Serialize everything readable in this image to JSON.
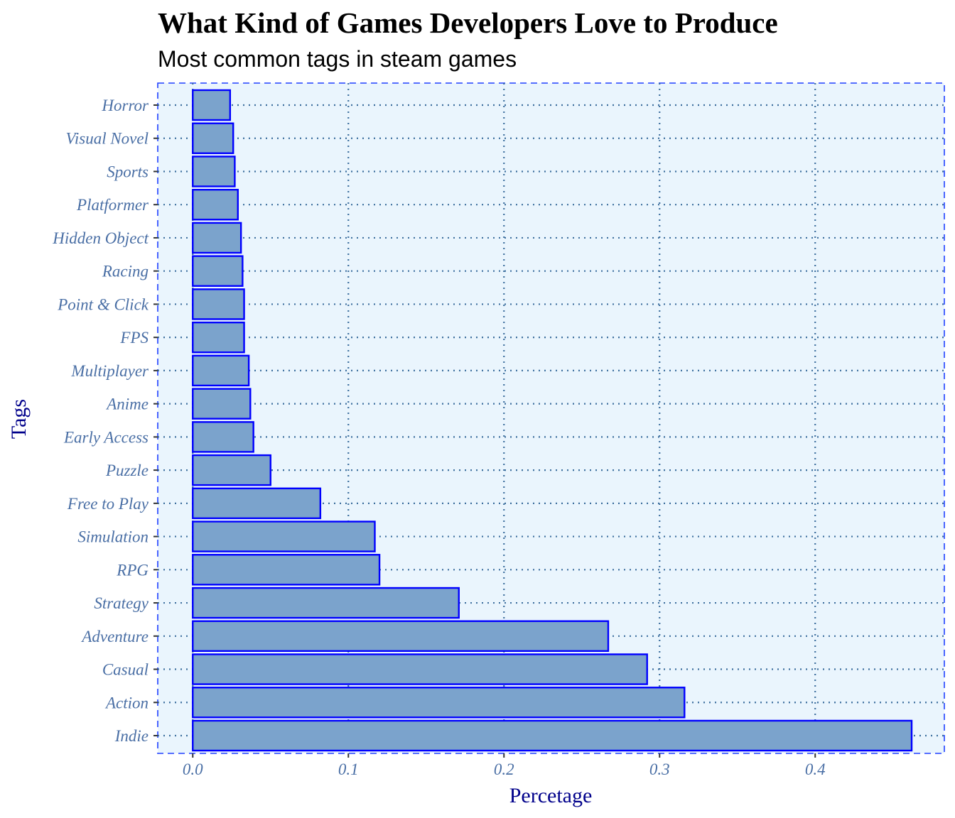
{
  "chart_data": {
    "type": "bar",
    "orientation": "horizontal",
    "title": "What Kind of Games Developers Love to Produce",
    "subtitle": "Most common tags in steam games",
    "xlabel": "Percetage",
    "ylabel": "Tags",
    "xlim": [
      -0.0225,
      0.483
    ],
    "x_ticks": [
      "0.0",
      "0.1",
      "0.2",
      "0.3",
      "0.4"
    ],
    "x_tick_values": [
      0.0,
      0.1,
      0.2,
      0.3,
      0.4
    ],
    "categories": [
      "Indie",
      "Action",
      "Casual",
      "Adventure",
      "Strategy",
      "RPG",
      "Simulation",
      "Free to Play",
      "Puzzle",
      "Early Access",
      "Anime",
      "Multiplayer",
      "FPS",
      "Point & Click",
      "Racing",
      "Hidden Object",
      "Platformer",
      "Sports",
      "Visual Novel",
      "Horror"
    ],
    "values": [
      0.462,
      0.316,
      0.292,
      0.267,
      0.171,
      0.12,
      0.117,
      0.082,
      0.05,
      0.039,
      0.037,
      0.036,
      0.033,
      0.033,
      0.032,
      0.031,
      0.029,
      0.027,
      0.026,
      0.024
    ],
    "grid": true,
    "legend": "none",
    "colors": {
      "bar_fill": "#7ba3cc",
      "bar_stroke": "#0000ff",
      "panel_fill": "#eaf5fd",
      "panel_border": "#1f3fff",
      "grid": "#3d6f9e",
      "tick_label": "#4a6fa5",
      "axis_title": "#00008b"
    }
  }
}
